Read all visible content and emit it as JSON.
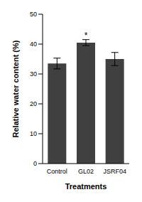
{
  "chart_data": {
    "type": "bar",
    "x_label": "Treatments",
    "y_label": "Relative water content (%)",
    "categories": [
      "Control",
      "GL02",
      "JSRF04"
    ],
    "values": [
      33.5,
      40.5,
      35
    ],
    "errors": [
      1.8,
      1.0,
      2.2
    ],
    "color": "#404040",
    "ylim": [
      0,
      50
    ],
    "yticks": [
      0,
      10,
      20,
      30,
      40,
      50
    ],
    "grid": false,
    "annotations": [
      {
        "category": "GL02",
        "text": "*"
      }
    ]
  }
}
